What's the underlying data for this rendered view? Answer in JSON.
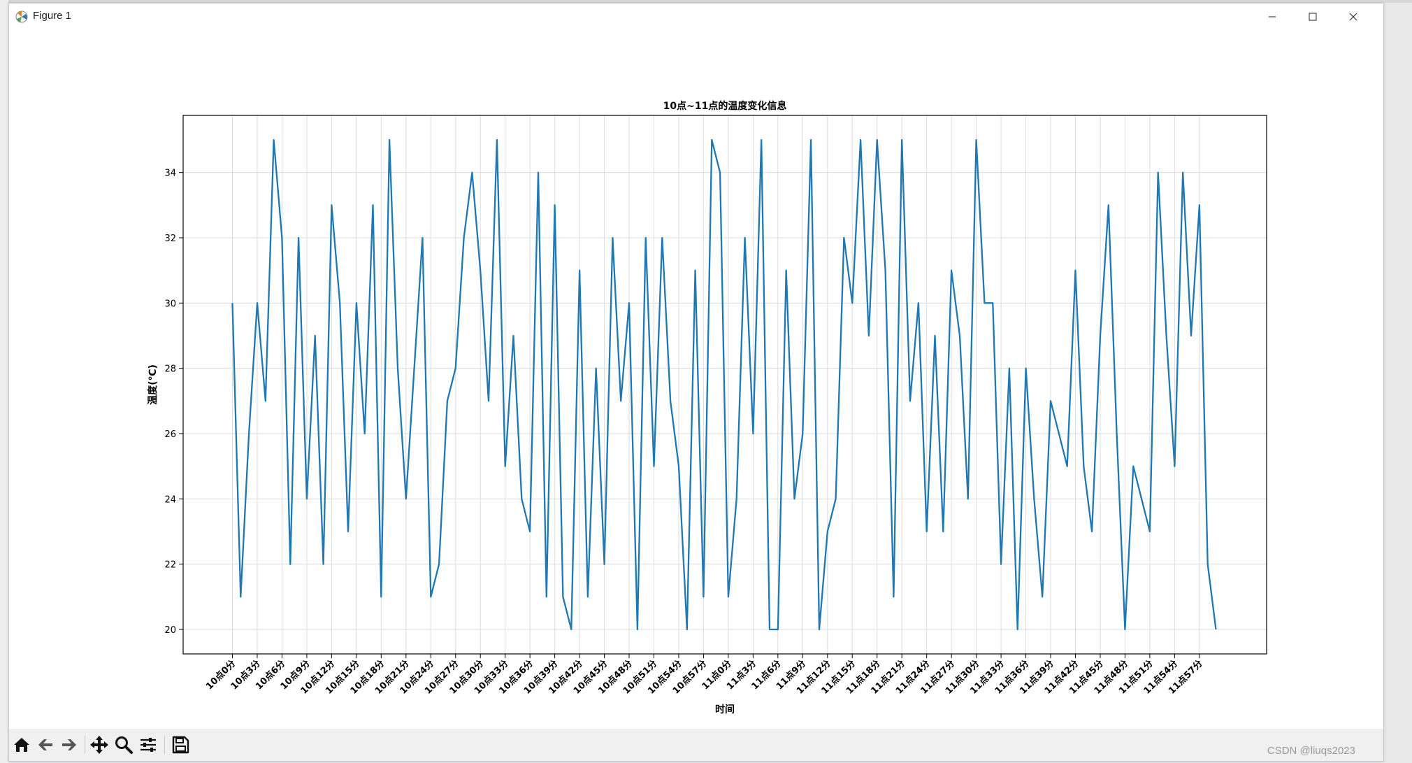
{
  "window": {
    "title": "Figure 1"
  },
  "watermark": "CSDN @liuqs2023",
  "toolbar": {
    "home": "home-icon",
    "back": "back-arrow-icon",
    "forward": "forward-arrow-icon",
    "pan": "pan-move-icon",
    "zoom": "zoom-magnifier-icon",
    "configure": "configure-subplots-icon",
    "save": "save-floppy-icon"
  },
  "chart_data": {
    "type": "line",
    "title": "10点~11点的温度变化信息",
    "xlabel": "时间",
    "ylabel": "温度(℃)",
    "ylim": [
      19.25,
      35.75
    ],
    "yticks": [
      20,
      22,
      24,
      26,
      28,
      30,
      32,
      34
    ],
    "grid": true,
    "color": "#1f77b4",
    "x": [
      "10点0分",
      "10点1分",
      "10点2分",
      "10点3分",
      "10点4分",
      "10点5分",
      "10点6分",
      "10点7分",
      "10点8分",
      "10点9分",
      "10点10分",
      "10点11分",
      "10点12分",
      "10点13分",
      "10点14分",
      "10点15分",
      "10点16分",
      "10点17分",
      "10点18分",
      "10点19分",
      "10点20分",
      "10点21分",
      "10点22分",
      "10点23分",
      "10点24分",
      "10点25分",
      "10点26分",
      "10点27分",
      "10点28分",
      "10点29分",
      "10点30分",
      "10点31分",
      "10点32分",
      "10点33分",
      "10点34分",
      "10点35分",
      "10点36分",
      "10点37分",
      "10点38分",
      "10点39分",
      "10点40分",
      "10点41分",
      "10点42分",
      "10点43分",
      "10点44分",
      "10点45分",
      "10点46分",
      "10点47分",
      "10点48分",
      "10点49分",
      "10点50分",
      "10点51分",
      "10点52分",
      "10点53分",
      "10点54分",
      "10点55分",
      "10点56分",
      "10点57分",
      "10点58分",
      "10点59分",
      "11点0分",
      "11点1分",
      "11点2分",
      "11点3分",
      "11点4分",
      "11点5分",
      "11点6分",
      "11点7分",
      "11点8分",
      "11点9分",
      "11点10分",
      "11点11分",
      "11点12分",
      "11点13分",
      "11点14分",
      "11点15分",
      "11点16分",
      "11点17分",
      "11点18分",
      "11点19分",
      "11点20分",
      "11点21分",
      "11点22分",
      "11点23分",
      "11点24分",
      "11点25分",
      "11点26分",
      "11点27分",
      "11点28分",
      "11点29分",
      "11点30分",
      "11点31分",
      "11点32分",
      "11点33分",
      "11点34分",
      "11点35分",
      "11点36分",
      "11点37分",
      "11点38分",
      "11点39分",
      "11点40分",
      "11点41分",
      "11点42分",
      "11点43分",
      "11点44分",
      "11点45分",
      "11点46分",
      "11点47分",
      "11点48分",
      "11点49分",
      "11点50分",
      "11点51分",
      "11点52分",
      "11点53分",
      "11点54分",
      "11点55分",
      "11点56分",
      "11点57分",
      "11点58分",
      "11点59分"
    ],
    "y": [
      30,
      21,
      26,
      30,
      27,
      35,
      32,
      22,
      32,
      24,
      29,
      22,
      33,
      30,
      23,
      30,
      26,
      33,
      21,
      35,
      28,
      24,
      28,
      32,
      21,
      22,
      27,
      28,
      32,
      34,
      31,
      27,
      35,
      25,
      29,
      24,
      23,
      34,
      21,
      33,
      21,
      20,
      31,
      21,
      28,
      22,
      32,
      27,
      30,
      20,
      32,
      25,
      32,
      27,
      25,
      20,
      31,
      21,
      35,
      34,
      21,
      24,
      32,
      26,
      35,
      20,
      20,
      31,
      24,
      26,
      35,
      20,
      23,
      24,
      32,
      30,
      35,
      29,
      35,
      31,
      21,
      35,
      27,
      30,
      23,
      29,
      23,
      31,
      29,
      24,
      35,
      30,
      30,
      22,
      28,
      20,
      28,
      24,
      21,
      27,
      26,
      25,
      31,
      25,
      23,
      29,
      33,
      26,
      20,
      25,
      24,
      23,
      34,
      29,
      25,
      34,
      29,
      33,
      22,
      20
    ],
    "xtick_step": 3
  }
}
